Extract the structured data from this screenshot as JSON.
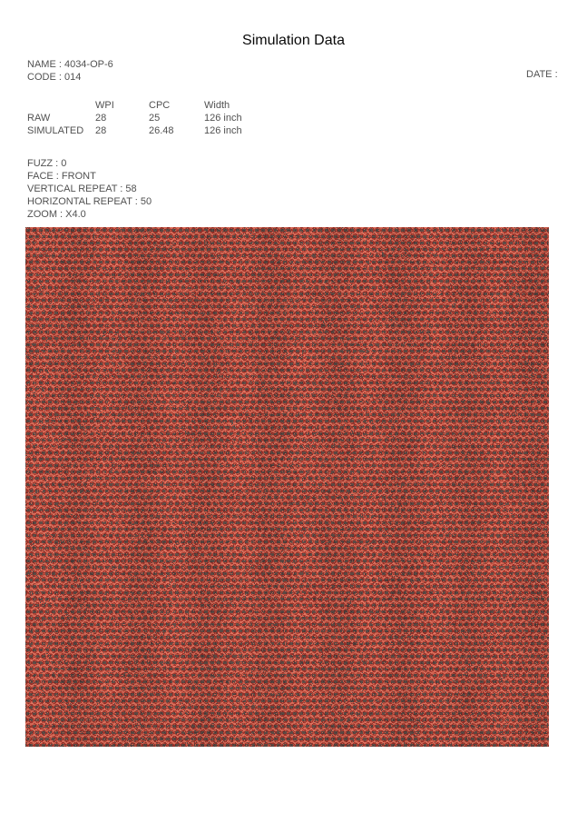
{
  "ui": {
    "sep": " : "
  },
  "title": "Simulation Data",
  "fields": {
    "name": {
      "label": "NAME",
      "value": "4034-OP-6"
    },
    "code": {
      "label": "CODE",
      "value": "014"
    },
    "date": {
      "label": "DATE",
      "value": ""
    }
  },
  "table": {
    "headers": {
      "wpi": "WPI",
      "cpc": "CPC",
      "width": "Width"
    },
    "rows": [
      {
        "label": "RAW",
        "wpi": "28",
        "cpc": "25",
        "width": "126 inch"
      },
      {
        "label": "SIMULATED",
        "wpi": "28",
        "cpc": "26.48",
        "width": "126 inch"
      }
    ]
  },
  "params": [
    {
      "label": "FUZZ",
      "value": "0"
    },
    {
      "label": "FACE",
      "value": "FRONT"
    },
    {
      "label": "VERTICAL REPEAT",
      "value": "58"
    },
    {
      "label": "HORIZONTAL REPEAT",
      "value": "50"
    },
    {
      "label": "ZOOM",
      "value": "X4.0"
    }
  ],
  "texture": {
    "description": "woven fabric simulation swatch, red weave with dark diagonal spots",
    "palette": {
      "base": "#b04a3b",
      "base_dark": "#99332b",
      "bright": "#c9604f",
      "highlight": "#d66f5d",
      "blob": "#5d4a44",
      "blob_dark": "#4a3937",
      "accent": "#8c2e27"
    }
  }
}
